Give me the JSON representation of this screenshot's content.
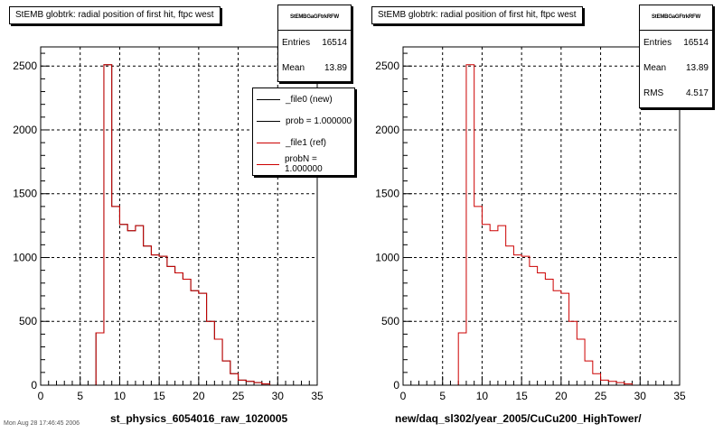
{
  "colors": {
    "line": "#cc0000",
    "frame": "#000000",
    "grid": "#000000",
    "background": "#ffffff"
  },
  "footer_text": "Mon Aug 28 17:46:45 2006",
  "chart_data": [
    {
      "type": "histogram",
      "title": "StEMB globtrk: radial position of first hit, ftpc west",
      "xlabel": "st_physics_6054016_raw_1020005",
      "ylabel": "",
      "xlim": [
        0,
        35
      ],
      "ylim": [
        0,
        2650
      ],
      "x_ticks": [
        0,
        5,
        10,
        15,
        20,
        25,
        30,
        35
      ],
      "y_ticks": [
        0,
        500,
        1000,
        1500,
        2000,
        2500
      ],
      "grid": true,
      "bin_edges": [
        0,
        1,
        2,
        3,
        4,
        5,
        6,
        7,
        8,
        9,
        10,
        11,
        12,
        13,
        14,
        15,
        16,
        17,
        18,
        19,
        20,
        21,
        22,
        23,
        24,
        25,
        26,
        27,
        28,
        29,
        30,
        31,
        32,
        33,
        34,
        35
      ],
      "series": [
        {
          "name": "_file0 (new)",
          "color": "#000000",
          "values": [
            0,
            0,
            0,
            0,
            0,
            0,
            0,
            410,
            2510,
            1400,
            1260,
            1210,
            1250,
            1090,
            1020,
            1010,
            930,
            880,
            830,
            740,
            720,
            500,
            360,
            190,
            90,
            40,
            30,
            20,
            10,
            0,
            0,
            0,
            0,
            0,
            0
          ]
        },
        {
          "name": "_file1 (ref)",
          "color": "#cc0000",
          "values": [
            0,
            0,
            0,
            0,
            0,
            0,
            0,
            410,
            2510,
            1400,
            1260,
            1210,
            1250,
            1090,
            1020,
            1010,
            930,
            880,
            830,
            740,
            720,
            500,
            360,
            190,
            90,
            40,
            30,
            20,
            10,
            0,
            0,
            0,
            0,
            0,
            0
          ]
        }
      ],
      "stats": {
        "header": "StEMBGaGFtrkRFW",
        "entries_label": "Entries",
        "entries": "16514",
        "mean_label": "Mean",
        "mean": "13.89"
      },
      "legend": {
        "items": [
          {
            "label": "_file0 (new)",
            "color": "#000000"
          },
          {
            "label": "prob = 1.000000",
            "color": "#000000"
          },
          {
            "label": "_file1 (ref)",
            "color": "#cc0000"
          },
          {
            "label": "probN = 1.000000",
            "color": "#cc0000"
          }
        ]
      }
    },
    {
      "type": "histogram",
      "title": "StEMB globtrk: radial position of first hit, ftpc west",
      "xlabel": "new/daq_sl302/year_2005/CuCu200_HighTower/",
      "ylabel": "",
      "xlim": [
        0,
        35
      ],
      "ylim": [
        0,
        2650
      ],
      "x_ticks": [
        0,
        5,
        10,
        15,
        20,
        25,
        30,
        35
      ],
      "y_ticks": [
        0,
        500,
        1000,
        1500,
        2000,
        2500
      ],
      "grid": true,
      "bin_edges": [
        0,
        1,
        2,
        3,
        4,
        5,
        6,
        7,
        8,
        9,
        10,
        11,
        12,
        13,
        14,
        15,
        16,
        17,
        18,
        19,
        20,
        21,
        22,
        23,
        24,
        25,
        26,
        27,
        28,
        29,
        30,
        31,
        32,
        33,
        34,
        35
      ],
      "series": [
        {
          "name": "",
          "color": "#cc0000",
          "values": [
            0,
            0,
            0,
            0,
            0,
            0,
            0,
            410,
            2510,
            1400,
            1260,
            1210,
            1250,
            1090,
            1020,
            1010,
            930,
            880,
            830,
            740,
            720,
            500,
            360,
            190,
            90,
            40,
            30,
            20,
            10,
            0,
            0,
            0,
            0,
            0,
            0
          ]
        }
      ],
      "stats": {
        "header": "StEMBGaGFtrkRFW",
        "entries_label": "Entries",
        "entries": "16514",
        "mean_label": "Mean",
        "mean": "13.89",
        "rms_label": "RMS",
        "rms": "4.517"
      }
    }
  ]
}
